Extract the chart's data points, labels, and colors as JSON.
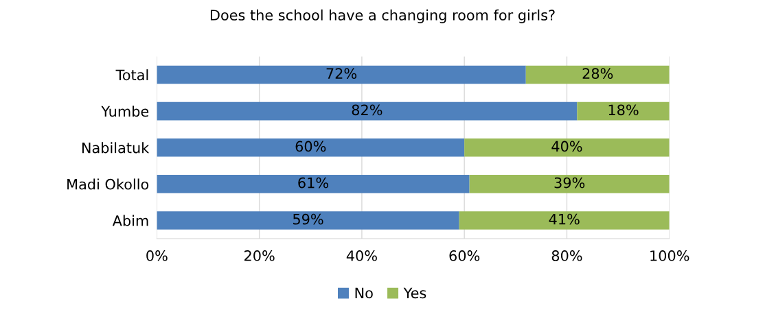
{
  "chart_data": {
    "type": "bar",
    "orientation": "horizontal",
    "stacked": true,
    "title": "Does the school have a changing room for girls?",
    "categories": [
      "Total",
      "Yumbe",
      "Nabilatuk",
      "Madi Okollo",
      "Abim"
    ],
    "series": [
      {
        "name": "No",
        "color": "#4f81bd",
        "values": [
          72,
          82,
          60,
          61,
          59
        ],
        "value_labels": [
          "72%",
          "82%",
          "60%",
          "61%",
          "59%"
        ]
      },
      {
        "name": "Yes",
        "color": "#9bbb59",
        "values": [
          28,
          18,
          40,
          39,
          41
        ],
        "value_labels": [
          "28%",
          "18%",
          "40%",
          "39%",
          "41%"
        ]
      }
    ],
    "xlim": [
      0,
      100
    ],
    "xticks": [
      {
        "value": 0,
        "label": "0%"
      },
      {
        "value": 20,
        "label": "20%"
      },
      {
        "value": 40,
        "label": "40%"
      },
      {
        "value": 60,
        "label": "60%"
      },
      {
        "value": 80,
        "label": "80%"
      },
      {
        "value": 100,
        "label": "100%"
      }
    ],
    "grid": "x",
    "legend": "bottom"
  }
}
